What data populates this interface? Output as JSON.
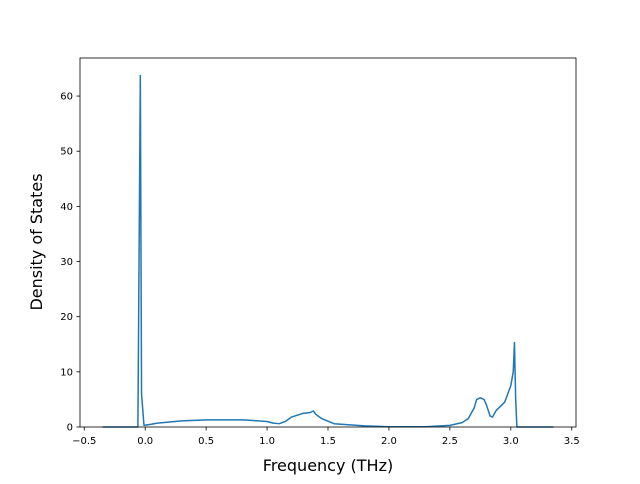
{
  "chart_data": {
    "type": "line",
    "xlabel": "Frequency (THz)",
    "ylabel": "Density of States",
    "x": [
      -0.35,
      -0.06,
      -0.04,
      -0.03,
      -0.01,
      0.05,
      0.1,
      0.2,
      0.3,
      0.5,
      0.8,
      1.0,
      1.05,
      1.1,
      1.15,
      1.2,
      1.3,
      1.35,
      1.38,
      1.4,
      1.45,
      1.55,
      1.8,
      2.0,
      2.3,
      2.5,
      2.6,
      2.65,
      2.7,
      2.72,
      2.75,
      2.78,
      2.8,
      2.83,
      2.85,
      2.88,
      2.95,
      3.0,
      3.02,
      3.03,
      3.04,
      3.05,
      3.35
    ],
    "values": [
      0,
      0,
      63.7,
      6,
      0.3,
      0.5,
      0.7,
      0.9,
      1.1,
      1.3,
      1.3,
      1.0,
      0.7,
      0.6,
      1.0,
      1.8,
      2.5,
      2.6,
      2.9,
      2.3,
      1.5,
      0.6,
      0.2,
      0.05,
      0.05,
      0.3,
      0.8,
      1.5,
      3.5,
      5.0,
      5.3,
      5.0,
      4.0,
      2.0,
      1.8,
      3.0,
      4.5,
      7.5,
      10,
      15.3,
      5,
      0,
      0
    ],
    "color": "#1f77b4",
    "xlim": [
      -0.535,
      3.535
    ],
    "xticks": [
      {
        "value": -0.5,
        "label": "−0.5"
      },
      {
        "value": 0,
        "label": "0.0"
      },
      0.5,
      {
        "value": 1,
        "label": "1.0"
      },
      1.5,
      {
        "value": 2,
        "label": "2.0"
      },
      2.5,
      {
        "value": 3,
        "label": "3.0"
      },
      3.5
    ],
    "ylim": [
      0,
      66.9
    ],
    "yticks": [
      0,
      10,
      20,
      30,
      40,
      50,
      60
    ]
  }
}
